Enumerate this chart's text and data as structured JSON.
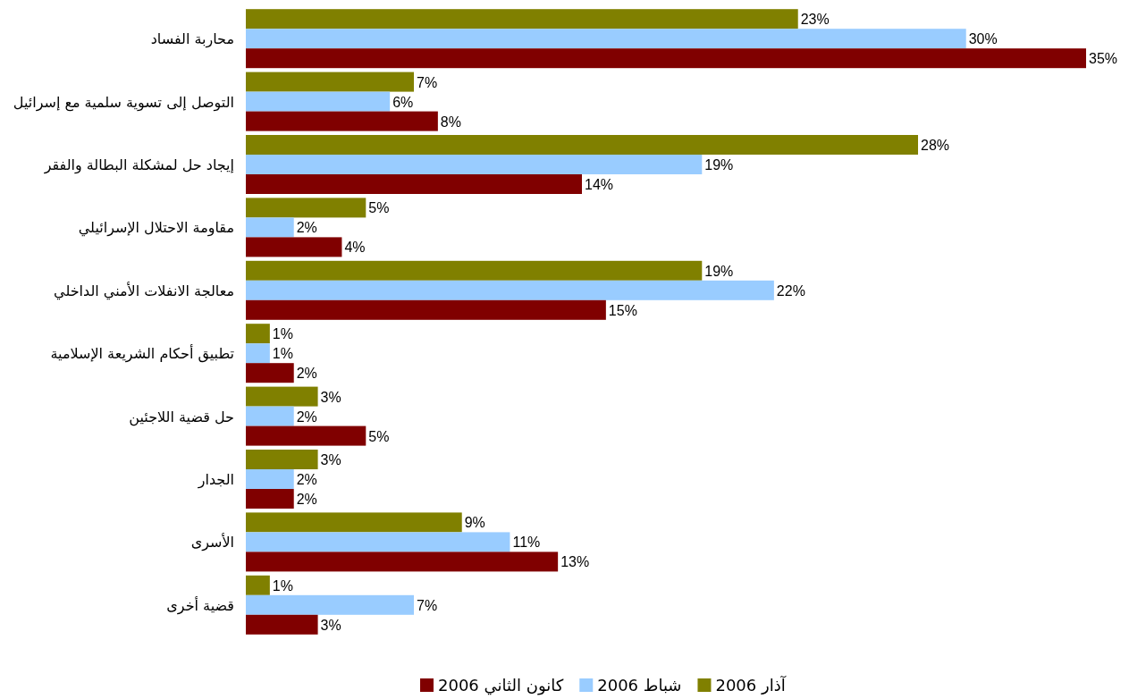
{
  "chart_data": {
    "type": "bar",
    "orientation": "horizontal",
    "categories": [
      "محاربة الفساد",
      "التوصل إلى تسوية سلمية مع إسرائيل",
      "إيجاد حل لمشكلة البطالة والفقر",
      "مقاومة الاحتلال الإسرائيلي",
      "معالجة الانفلات الأمني الداخلي",
      "تطبيق أحكام الشريعة الإسلامية",
      "حل قضية اللاجئين",
      "الجدار",
      "الأسرى",
      "قضية أخرى"
    ],
    "series": [
      {
        "name": "آذار 2006",
        "color": "#808000",
        "values": [
          23,
          7,
          28,
          5,
          19,
          1,
          3,
          3,
          9,
          1
        ],
        "value_labels": [
          "23%",
          "7%",
          "28%",
          "5%",
          "19%",
          "1%",
          "3%",
          "3%",
          "9%",
          "1%"
        ]
      },
      {
        "name": "شباط 2006",
        "color": "#99ccff",
        "values": [
          30,
          6,
          19,
          2,
          22,
          1,
          2,
          2,
          11,
          7
        ],
        "value_labels": [
          "30%",
          "6%",
          "19%",
          "2%",
          "22%",
          "1%",
          "2%",
          "2%",
          "11%",
          "7%"
        ]
      },
      {
        "name": "كانون الثاني 2006",
        "color": "#800000",
        "values": [
          35,
          8,
          14,
          4,
          15,
          2,
          5,
          2,
          13,
          3
        ],
        "value_labels": [
          "35%",
          "8%",
          "14%",
          "4%",
          "15%",
          "2%",
          "5%",
          "2%",
          "13%",
          "3%"
        ]
      }
    ],
    "legend": "bottom"
  }
}
